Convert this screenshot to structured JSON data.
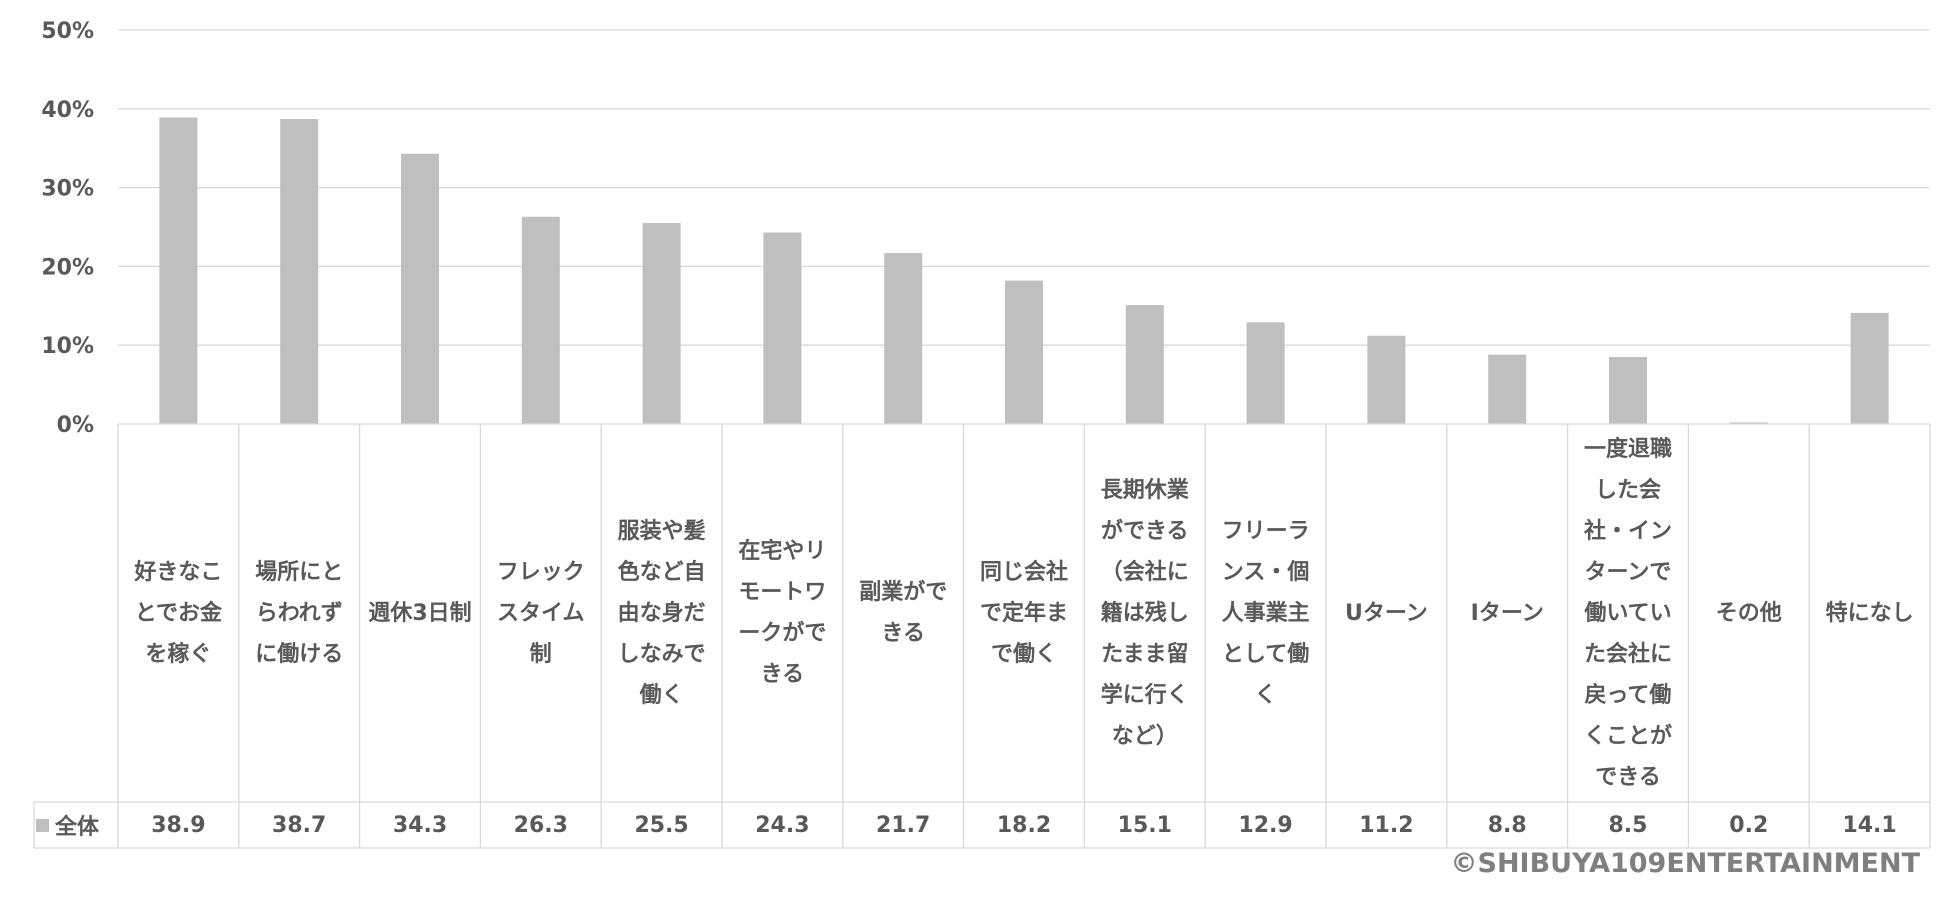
{
  "chart_data": {
    "type": "bar",
    "categories": [
      "好きなことでお金を稼ぐ",
      "場所にとらわれずに働ける",
      "週休3日制",
      "フレックスタイム制",
      "服装や髪色など自由な身だしなみで働く",
      "在宅やリモートワークができる",
      "副業ができる",
      "同じ会社で定年まで働く",
      "長期休業ができる（会社に籍は残したまま留学に行くなど）",
      "フリーランス・個人事業主として働く",
      "Uターン",
      "Iターン",
      "一度退職した会社・インターンで働いていた会社に戻って働くことができる",
      "その他",
      "特になし"
    ],
    "series": [
      {
        "name": "全体",
        "values": [
          38.9,
          38.7,
          34.3,
          26.3,
          25.5,
          24.3,
          21.7,
          18.2,
          15.1,
          12.9,
          11.2,
          8.8,
          8.5,
          0.2,
          14.1
        ]
      }
    ],
    "value_labels": [
      "38.9",
      "38.7",
      "34.3",
      "26.3",
      "25.5",
      "24.3",
      "21.7",
      "18.2",
      "15.1",
      "12.9",
      "11.2",
      "8.8",
      "8.5",
      "0.2",
      "14.1"
    ],
    "yticks": [
      "0%",
      "10%",
      "20%",
      "30%",
      "40%",
      "50%"
    ],
    "ylim": [
      0,
      50
    ],
    "grid": true,
    "legend": "data-table-left",
    "bar_color": "#bfbfbf",
    "grid_color": "#d9d9d9"
  },
  "copyright": "©SHIBUYA109ENTERTAINMENT"
}
